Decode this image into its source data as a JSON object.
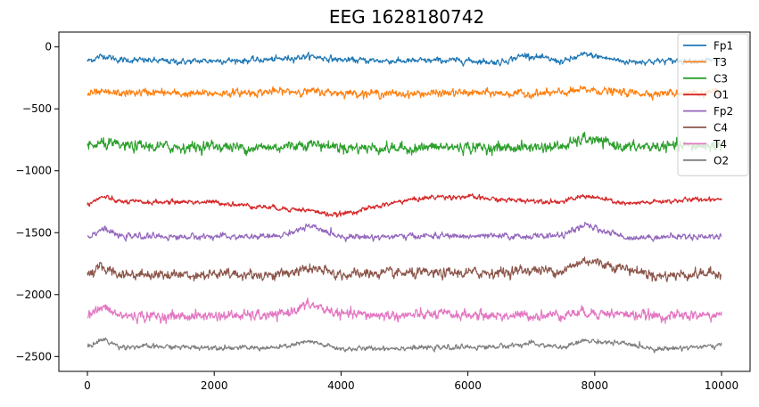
{
  "chart_data": {
    "type": "line",
    "title": "EEG 1628180742",
    "xlabel": "",
    "ylabel": "",
    "xlim": [
      -450,
      10450
    ],
    "ylim": [
      -2620,
      120
    ],
    "x_ticks": [
      0,
      2000,
      4000,
      6000,
      8000,
      10000
    ],
    "x_tick_labels": [
      "0",
      "2000",
      "4000",
      "6000",
      "8000",
      "10000"
    ],
    "y_ticks": [
      0,
      -500,
      -1000,
      -1500,
      -2000,
      -2500
    ],
    "y_tick_labels": [
      "0",
      "−500",
      "−1000",
      "−1500",
      "−2000",
      "−2500"
    ],
    "x_range": [
      0,
      10000
    ],
    "grid": false,
    "legend_position": "top-right",
    "series": [
      {
        "name": "Fp1",
        "color": "#1f77b4",
        "x": [
          0,
          250,
          500,
          1000,
          1500,
          2000,
          2500,
          3000,
          3500,
          4000,
          4500,
          5000,
          5500,
          6000,
          6500,
          6900,
          7500,
          7850,
          8500,
          9000,
          9500,
          10000
        ],
        "values": [
          -115,
          -70,
          -105,
          -110,
          -120,
          -110,
          -110,
          -100,
          -75,
          -105,
          -110,
          -115,
          -110,
          -110,
          -125,
          -65,
          -120,
          -60,
          -120,
          -115,
          -110,
          -110
        ],
        "amplitude": 22
      },
      {
        "name": "T3",
        "color": "#ff7f0e",
        "x": [
          0,
          250,
          500,
          1000,
          1500,
          2000,
          2500,
          3000,
          3500,
          4000,
          4500,
          5000,
          5500,
          6000,
          6500,
          7000,
          7500,
          7850,
          8500,
          9000,
          9500,
          10000
        ],
        "values": [
          -380,
          -370,
          -375,
          -365,
          -380,
          -375,
          -370,
          -360,
          -360,
          -370,
          -375,
          -380,
          -375,
          -370,
          -375,
          -380,
          -370,
          -345,
          -370,
          -375,
          -370,
          -375
        ],
        "amplitude": 28
      },
      {
        "name": "C3",
        "color": "#2ca02c",
        "x": [
          0,
          250,
          500,
          1000,
          1500,
          2000,
          2500,
          3000,
          3500,
          4000,
          4500,
          5000,
          5500,
          6000,
          6500,
          7000,
          7500,
          7850,
          8500,
          9000,
          9500,
          10000
        ],
        "values": [
          -810,
          -780,
          -800,
          -805,
          -810,
          -800,
          -815,
          -810,
          -780,
          -810,
          -815,
          -820,
          -810,
          -810,
          -815,
          -810,
          -805,
          -740,
          -810,
          -805,
          -800,
          -800
        ],
        "amplitude": 40
      },
      {
        "name": "O1",
        "color": "#d62728",
        "x": [
          0,
          250,
          500,
          1000,
          1500,
          2000,
          2500,
          3000,
          3500,
          3900,
          4300,
          5000,
          5500,
          6000,
          6500,
          7000,
          7500,
          7850,
          8500,
          9000,
          9500,
          10000
        ],
        "values": [
          -1270,
          -1210,
          -1250,
          -1255,
          -1250,
          -1255,
          -1280,
          -1300,
          -1320,
          -1360,
          -1320,
          -1240,
          -1210,
          -1210,
          -1235,
          -1240,
          -1250,
          -1200,
          -1270,
          -1250,
          -1235,
          -1225
        ],
        "amplitude": 18
      },
      {
        "name": "Fp2",
        "color": "#9467bd",
        "x": [
          0,
          250,
          500,
          1000,
          1500,
          2000,
          2500,
          3000,
          3500,
          4000,
          4500,
          5000,
          5500,
          6000,
          6500,
          7000,
          7500,
          7850,
          8500,
          9000,
          9500,
          10000
        ],
        "values": [
          -1535,
          -1465,
          -1530,
          -1530,
          -1535,
          -1530,
          -1535,
          -1530,
          -1450,
          -1530,
          -1535,
          -1530,
          -1525,
          -1530,
          -1530,
          -1530,
          -1520,
          -1440,
          -1540,
          -1535,
          -1530,
          -1530
        ],
        "amplitude": 22
      },
      {
        "name": "C4",
        "color": "#8c564b",
        "x": [
          0,
          250,
          500,
          1000,
          1500,
          2000,
          2500,
          3000,
          3500,
          4000,
          4500,
          5000,
          5500,
          6000,
          6500,
          7000,
          7500,
          7850,
          8500,
          9000,
          9500,
          10000
        ],
        "values": [
          -1830,
          -1780,
          -1835,
          -1835,
          -1840,
          -1835,
          -1840,
          -1840,
          -1790,
          -1840,
          -1830,
          -1830,
          -1830,
          -1825,
          -1820,
          -1800,
          -1810,
          -1720,
          -1790,
          -1850,
          -1835,
          -1825
        ],
        "amplitude": 38
      },
      {
        "name": "T4",
        "color": "#e377c2",
        "x": [
          0,
          250,
          500,
          1000,
          1500,
          2000,
          2500,
          3000,
          3500,
          4000,
          4500,
          5000,
          5500,
          6000,
          6500,
          7000,
          7500,
          7850,
          8500,
          9000,
          9500,
          10000
        ],
        "values": [
          -2165,
          -2105,
          -2170,
          -2175,
          -2175,
          -2170,
          -2170,
          -2170,
          -2080,
          -2160,
          -2165,
          -2170,
          -2160,
          -2165,
          -2170,
          -2170,
          -2160,
          -2140,
          -2160,
          -2175,
          -2170,
          -2165
        ],
        "amplitude": 38
      },
      {
        "name": "O2",
        "color": "#7f7f7f",
        "x": [
          0,
          250,
          500,
          1000,
          1500,
          2000,
          2500,
          3000,
          3500,
          4000,
          4500,
          5000,
          5500,
          6000,
          6500,
          7000,
          7500,
          7850,
          8500,
          9000,
          9500,
          10000
        ],
        "values": [
          -2420,
          -2360,
          -2420,
          -2420,
          -2425,
          -2425,
          -2430,
          -2430,
          -2380,
          -2440,
          -2435,
          -2430,
          -2430,
          -2425,
          -2420,
          -2395,
          -2430,
          -2370,
          -2400,
          -2440,
          -2425,
          -2415
        ],
        "amplitude": 18
      }
    ]
  }
}
